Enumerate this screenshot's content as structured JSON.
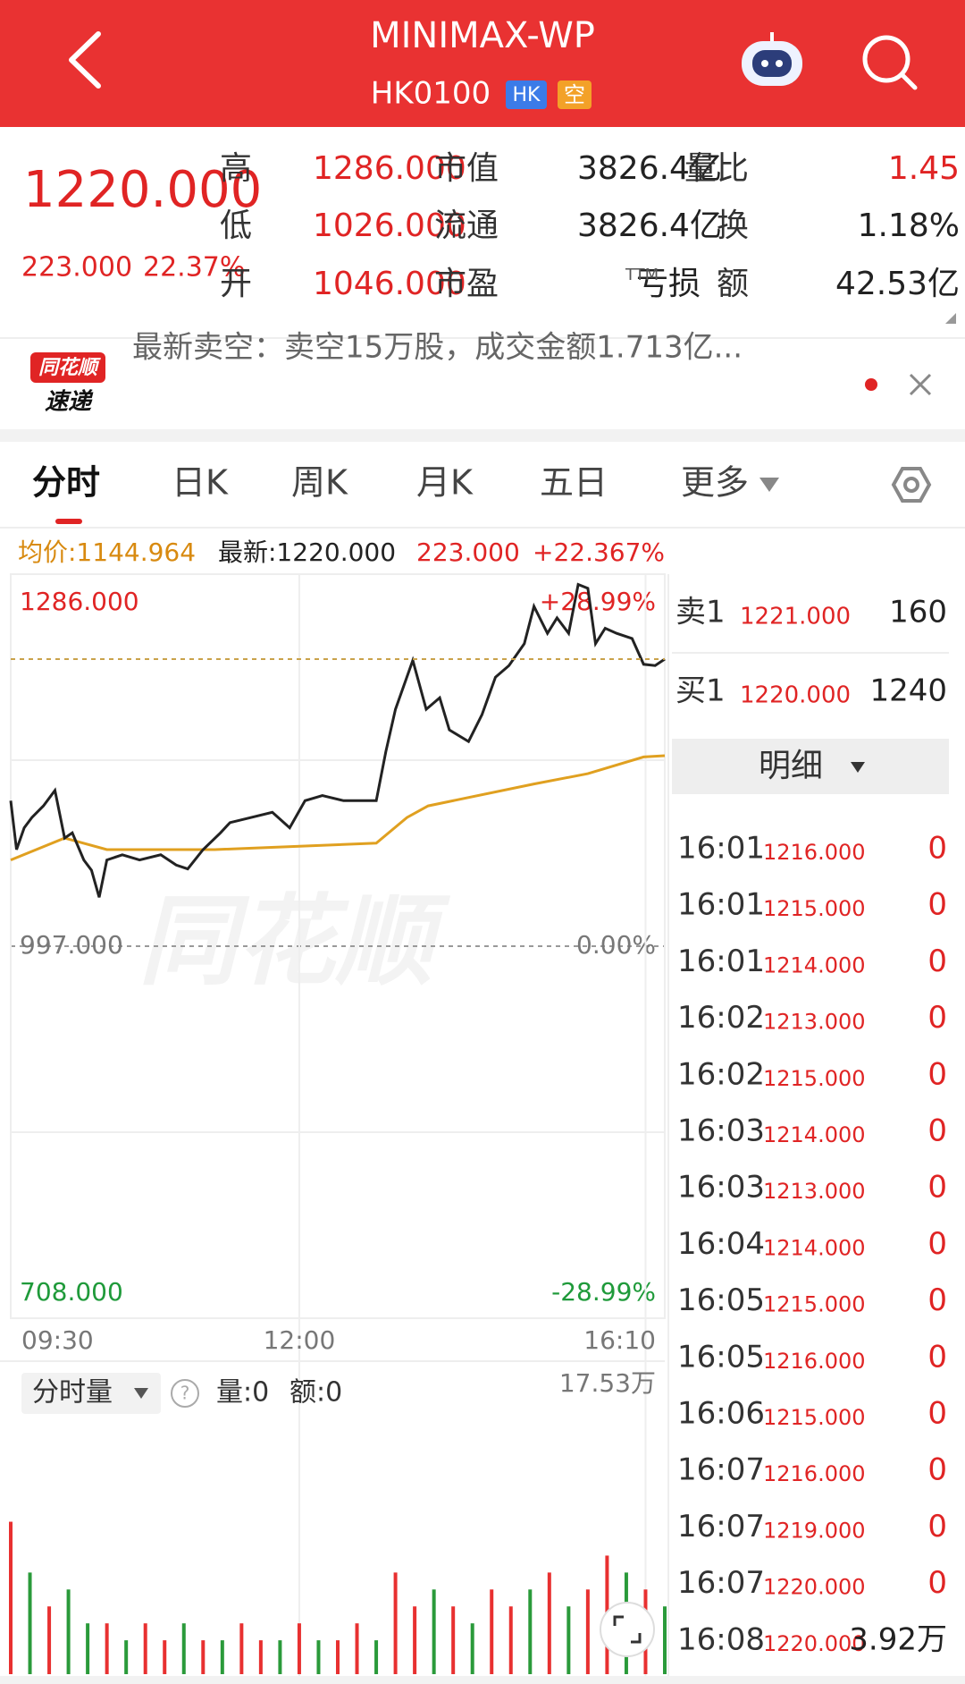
{
  "header": {
    "title": "MINIMAX-WP",
    "code": "HK0100",
    "badge_market": "HK",
    "badge_short": "空"
  },
  "quote": {
    "price": "1220.000",
    "change": "223.000",
    "change_pct": "22.37%",
    "rows": [
      [
        {
          "label": "高",
          "value": "1286.000"
        },
        {
          "label": "市值",
          "value": "3826.4亿"
        },
        {
          "label": "量比",
          "value": "1.45"
        }
      ],
      [
        {
          "label": "低",
          "value": "1026.000"
        },
        {
          "label": "流通",
          "value": "3826.4亿"
        },
        {
          "label": "换",
          "value": "1.18%"
        }
      ],
      [
        {
          "label": "开",
          "value": "1046.000"
        },
        {
          "label": "市盈",
          "value": "亏损"
        },
        {
          "label": "额",
          "value": "42.53亿"
        }
      ]
    ],
    "pe_suffix": "TTM"
  },
  "news": {
    "logo_top": "同花顺",
    "logo_bottom": "速递",
    "text": "最新卖空：卖空15万股，成交金额1.713亿..."
  },
  "tabs": [
    "分时",
    "日K",
    "周K",
    "月K",
    "五日",
    "更多"
  ],
  "info": {
    "avg": "均价:1144.964",
    "latest": "最新:1220.000",
    "change": "223.000",
    "change_pct": "+22.367%"
  },
  "watermark": "同花顺",
  "chart_data": {
    "type": "line",
    "xlim": [
      0,
      340
    ],
    "xticks": [
      {
        "value": 0,
        "label": "09:30"
      },
      {
        "value": 150,
        "label": "12:00"
      },
      {
        "value": 330,
        "label": null
      },
      {
        "value": 340,
        "label": "16:10"
      }
    ],
    "ylim": [
      708,
      1286
    ],
    "yticks": [
      {
        "value": 1286,
        "label": "1286.000"
      },
      {
        "value": 1141.5,
        "label": null
      },
      {
        "value": 997,
        "label": "997.000"
      },
      {
        "value": 852.5,
        "label": null
      },
      {
        "value": 708,
        "label": "708.000"
      }
    ],
    "y2lim": [
      -28.99,
      28.99
    ],
    "y2ticks": [
      {
        "value": 28.99,
        "label": "+28.99%"
      },
      {
        "value": 0,
        "label": "0.00%"
      },
      {
        "value": -28.99,
        "label": "-28.99%"
      }
    ],
    "series": [
      {
        "color": "#222222",
        "x": [
          0,
          3,
          7,
          11,
          17,
          23,
          28,
          32,
          38,
          42,
          46,
          50,
          58,
          67,
          78,
          86,
          92,
          100,
          109,
          114,
          125,
          136,
          145,
          153,
          162,
          173,
          184,
          190,
          195,
          200,
          209,
          216,
          223,
          228,
          238,
          245,
          252,
          259,
          267,
          272,
          279,
          284,
          290,
          295,
          300,
          304,
          309,
          315,
          323,
          329,
          335,
          340
        ],
        "values": [
          1110,
          1072,
          1089,
          1097,
          1106,
          1118,
          1081,
          1085,
          1064,
          1056,
          1035,
          1064,
          1068,
          1064,
          1068,
          1060,
          1057,
          1072,
          1085,
          1093,
          1097,
          1101,
          1089,
          1110,
          1114,
          1110,
          1110,
          1110,
          1148,
          1181,
          1219,
          1181,
          1190,
          1165,
          1156,
          1177,
          1206,
          1215,
          1232,
          1261,
          1240,
          1252,
          1240,
          1278,
          1275,
          1232,
          1244,
          1240,
          1236,
          1216,
          1215,
          1220
        ]
      },
      {
        "color": "#e0a020",
        "x": [
          0,
          28,
          50,
          106,
          190,
          206,
          217,
          272,
          300,
          329,
          340
        ],
        "values": [
          1064,
          1081,
          1072,
          1072,
          1077,
          1097,
          1106,
          1123,
          1131,
          1144,
          1144.964
        ]
      }
    ]
  },
  "volume": {
    "type": "bar",
    "title": "分时量",
    "help": "?",
    "qty": "量:0",
    "amount": "额:0",
    "ylim": [
      0,
      17.53
    ],
    "yticks": [
      {
        "value": 17.53,
        "label": "17.53万"
      }
    ],
    "x": [
      0,
      10,
      20,
      30,
      40,
      50,
      60,
      70,
      80,
      90,
      100,
      110,
      120,
      130,
      140,
      150,
      160,
      170,
      180,
      190,
      200,
      210,
      220,
      230,
      240,
      250,
      260,
      270,
      280,
      290,
      300,
      310,
      320,
      330,
      340
    ],
    "values": [
      9,
      6,
      4,
      5,
      3,
      3,
      2,
      3,
      2,
      3,
      2,
      2,
      3,
      2,
      2,
      3,
      2,
      2,
      3,
      2,
      6,
      4,
      5,
      4,
      3,
      5,
      4,
      5,
      6,
      4,
      5,
      7,
      6,
      5,
      4
    ],
    "colors": [
      "#e83030",
      "#2a9a3a",
      "#e83030",
      "#2a9a3a",
      "#2a9a3a",
      "#e83030",
      "#2a9a3a",
      "#e83030",
      "#e83030",
      "#2a9a3a",
      "#e83030",
      "#2a9a3a",
      "#e83030",
      "#e83030",
      "#2a9a3a",
      "#e83030",
      "#2a9a3a",
      "#e83030",
      "#e83030",
      "#2a9a3a",
      "#e83030",
      "#e83030",
      "#2a9a3a",
      "#e83030",
      "#2a9a3a",
      "#e83030",
      "#e83030",
      "#2a9a3a",
      "#e83030",
      "#2a9a3a",
      "#e83030",
      "#e83030",
      "#2a9a3a",
      "#e83030",
      "#2a9a3a"
    ]
  },
  "order_book": [
    {
      "side": "卖1",
      "price": "1221.000",
      "qty": "160"
    },
    {
      "side": "买1",
      "price": "1220.000",
      "qty": "1240"
    }
  ],
  "detail_button": "明细",
  "details": [
    {
      "time": "16:01",
      "price": "1216.000",
      "qty": "0"
    },
    {
      "time": "16:01",
      "price": "1215.000",
      "qty": "0"
    },
    {
      "time": "16:01",
      "price": "1214.000",
      "qty": "0"
    },
    {
      "time": "16:02",
      "price": "1213.000",
      "qty": "0"
    },
    {
      "time": "16:02",
      "price": "1215.000",
      "qty": "0"
    },
    {
      "time": "16:03",
      "price": "1214.000",
      "qty": "0"
    },
    {
      "time": "16:03",
      "price": "1213.000",
      "qty": "0"
    },
    {
      "time": "16:04",
      "price": "1214.000",
      "qty": "0"
    },
    {
      "time": "16:05",
      "price": "1215.000",
      "qty": "0"
    },
    {
      "time": "16:05",
      "price": "1216.000",
      "qty": "0"
    },
    {
      "time": "16:06",
      "price": "1215.000",
      "qty": "0"
    },
    {
      "time": "16:07",
      "price": "1216.000",
      "qty": "0"
    },
    {
      "time": "16:07",
      "price": "1219.000",
      "qty": "0"
    },
    {
      "time": "16:07",
      "price": "1220.000",
      "qty": "0"
    },
    {
      "time": "16:08",
      "price": "1220.000",
      "qty": "3.92万"
    }
  ]
}
